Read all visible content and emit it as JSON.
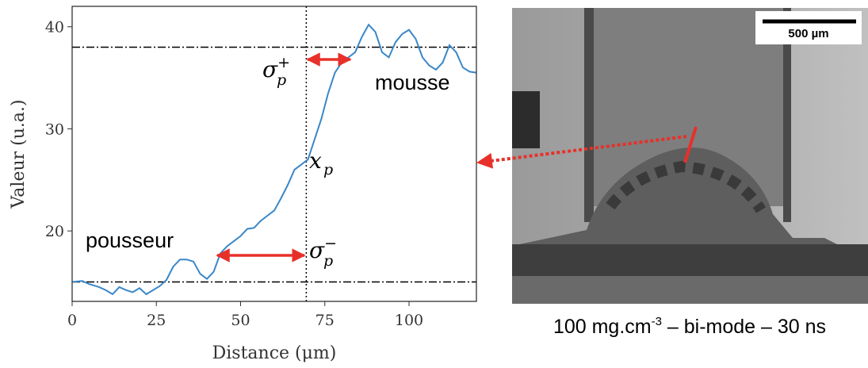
{
  "chart_data": {
    "type": "line",
    "xlabel": "Distance (μm)",
    "ylabel": "Valeur (u.a.)",
    "xlim": [
      0,
      120
    ],
    "ylim": [
      13.1,
      42
    ],
    "xticks": [
      0,
      25,
      50,
      75,
      100
    ],
    "yticks": [
      20,
      30,
      40
    ],
    "hlines": [
      38,
      15
    ],
    "vline": 69.5,
    "series": [
      {
        "color": "#3a87c8",
        "x": [
          0,
          3,
          5,
          8,
          10,
          12,
          14,
          16,
          18,
          20,
          22,
          24,
          26,
          28,
          30,
          32,
          34,
          36,
          38,
          40,
          42,
          44,
          46,
          48,
          50,
          52,
          54,
          56,
          58,
          60,
          62,
          64,
          66,
          68,
          70,
          72,
          74,
          76,
          78,
          80,
          82,
          84,
          86,
          88,
          90,
          92,
          94,
          96,
          98,
          100,
          102,
          104,
          106,
          108,
          110,
          112,
          114,
          116,
          118,
          120
        ],
        "values": [
          15,
          15.1,
          14.8,
          14.5,
          14.2,
          13.8,
          14.5,
          14.2,
          14.0,
          14.4,
          13.8,
          14.2,
          14.6,
          15.2,
          16.5,
          17.2,
          17.2,
          17.0,
          15.8,
          15.3,
          16.0,
          17.8,
          18.5,
          19.0,
          19.5,
          20.2,
          20.3,
          21.0,
          21.5,
          22.0,
          23.2,
          24.5,
          26.0,
          26.5,
          27.0,
          29.0,
          31.0,
          33.5,
          35.5,
          36.5,
          37.0,
          37.5,
          39.0,
          40.2,
          39.5,
          37.5,
          37.0,
          38.5,
          39.3,
          39.7,
          38.8,
          37.0,
          36.2,
          35.8,
          36.5,
          38.2,
          37.5,
          36.0,
          35.6,
          35.5
        ]
      }
    ],
    "annotations": {
      "mousse": "mousse",
      "pousseur": "pousseur",
      "sigma_plus": {
        "text": "σ",
        "sub": "p",
        "sup": "+"
      },
      "sigma_minus": {
        "text": "σ",
        "sub": "p",
        "sup": "−"
      },
      "xp": {
        "text": "x",
        "sub": "p"
      }
    }
  },
  "image": {
    "scale_bar": "500 µm",
    "caption": {
      "before": "100 mg.cm",
      "sup": "-3",
      "after": " – bi-mode – 30 ns"
    }
  }
}
